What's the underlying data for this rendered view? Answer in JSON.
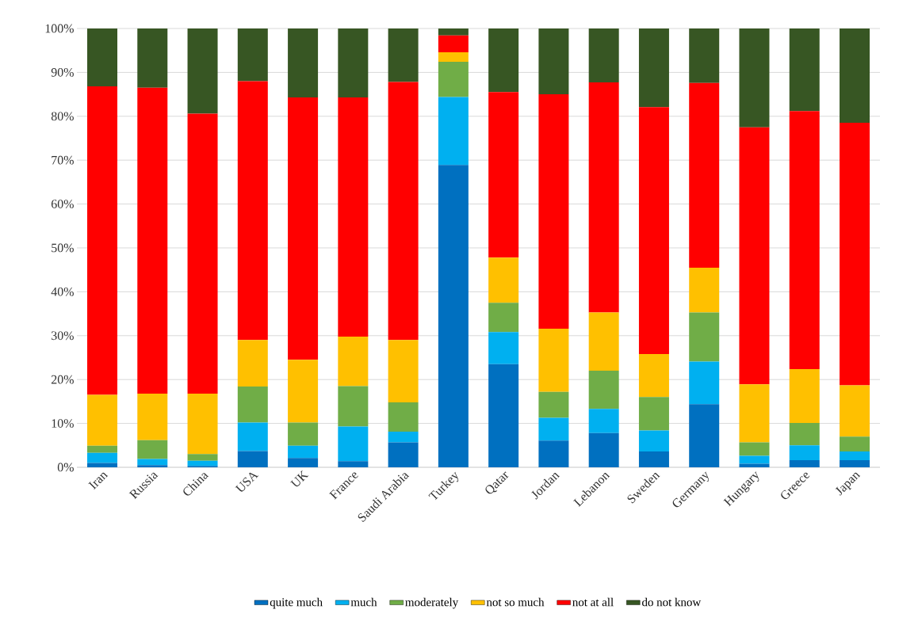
{
  "chart_data": {
    "type": "bar",
    "stacked": true,
    "categories": [
      "Iran",
      "Russia",
      "China",
      "USA",
      "UK",
      "France",
      "Saudi Arabia",
      "Turkey",
      "Qatar",
      "Jordan",
      "Lebanon",
      "Sweden",
      "Germany",
      "Hungary",
      "Greece",
      "Japan"
    ],
    "series": [
      {
        "name": "quite much",
        "color": "#0070c0",
        "values": [
          1.0,
          0.5,
          0.3,
          3.7,
          2.1,
          1.4,
          5.7,
          68.9,
          23.5,
          6.1,
          7.8,
          3.6,
          14.4,
          0.8,
          1.6,
          1.6
        ]
      },
      {
        "name": "much",
        "color": "#00b0f0",
        "values": [
          2.3,
          1.4,
          1.2,
          6.5,
          2.8,
          7.9,
          2.4,
          15.5,
          7.3,
          5.2,
          5.5,
          4.8,
          9.7,
          1.8,
          3.4,
          2.0
        ]
      },
      {
        "name": "moderately",
        "color": "#70ad47",
        "values": [
          1.6,
          4.3,
          1.5,
          8.2,
          5.3,
          9.2,
          6.7,
          8.0,
          6.7,
          5.9,
          8.7,
          7.6,
          11.2,
          3.1,
          5.1,
          3.4
        ]
      },
      {
        "name": "not so much",
        "color": "#ffc000",
        "values": [
          11.6,
          10.6,
          13.8,
          10.6,
          14.3,
          11.3,
          14.2,
          2.2,
          10.3,
          14.4,
          13.3,
          9.8,
          10.2,
          13.2,
          12.3,
          11.7
        ]
      },
      {
        "name": "not at all",
        "color": "#ff0000",
        "values": [
          70.3,
          69.7,
          63.8,
          59.0,
          59.8,
          54.5,
          58.8,
          3.8,
          37.7,
          53.4,
          52.4,
          56.3,
          42.1,
          58.6,
          58.8,
          59.8
        ]
      },
      {
        "name": "do not know",
        "color": "#375623",
        "values": [
          13.2,
          13.5,
          19.4,
          12.0,
          15.7,
          15.7,
          12.2,
          1.6,
          14.5,
          15.0,
          12.3,
          17.9,
          12.4,
          22.5,
          18.8,
          21.5
        ]
      }
    ],
    "ylim": [
      0,
      100
    ],
    "yticks": [
      {
        "value": 0,
        "label": "0%"
      },
      {
        "value": 10,
        "label": "10%"
      },
      {
        "value": 20,
        "label": "20%"
      },
      {
        "value": 30,
        "label": "30%"
      },
      {
        "value": 40,
        "label": "40%"
      },
      {
        "value": 50,
        "label": "50%"
      },
      {
        "value": 60,
        "label": "60%"
      },
      {
        "value": 70,
        "label": "70%"
      },
      {
        "value": 80,
        "label": "80%"
      },
      {
        "value": 90,
        "label": "90%"
      },
      {
        "value": 100,
        "label": "100%"
      }
    ],
    "grid": "y",
    "legend": "bottom"
  }
}
